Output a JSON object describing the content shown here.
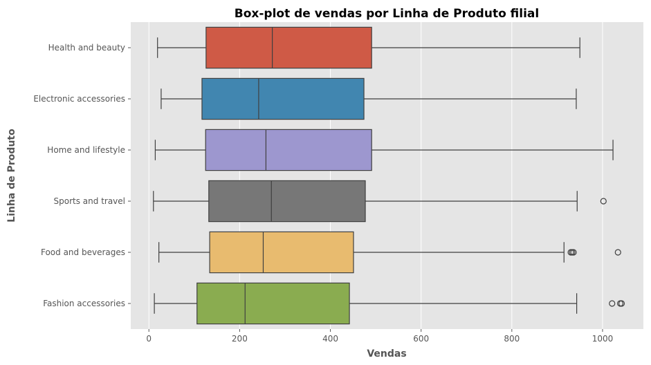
{
  "chart_data": {
    "type": "boxplot",
    "title": "Box-plot de vendas por Linha de Produto filial",
    "xlabel": "Vendas",
    "ylabel": "Linha de Produto",
    "xlim": [
      -40,
      1090
    ],
    "xticks": [
      0,
      200,
      400,
      600,
      800,
      1000
    ],
    "grid": true,
    "background": "#e5e5e5",
    "categories": [
      "Health and beauty",
      "Electronic accessories",
      "Home and lifestyle",
      "Sports and travel",
      "Food and beverages",
      "Fashion accessories"
    ],
    "boxes": [
      {
        "category": "Health and beauty",
        "color": "#cf5a46",
        "whisker_low": 19,
        "q1": 126,
        "median": 272,
        "q3": 491,
        "whisker_high": 950,
        "outliers": []
      },
      {
        "category": "Electronic accessories",
        "color": "#4186b0",
        "whisker_low": 27,
        "q1": 117,
        "median": 242,
        "q3": 474,
        "whisker_high": 942,
        "outliers": []
      },
      {
        "category": "Home and lifestyle",
        "color": "#9d97cf",
        "whisker_low": 14,
        "q1": 125,
        "median": 258,
        "q3": 491,
        "whisker_high": 1023,
        "outliers": []
      },
      {
        "category": "Sports and travel",
        "color": "#777777",
        "whisker_low": 10,
        "q1": 132,
        "median": 270,
        "q3": 477,
        "whisker_high": 944,
        "outliers": [
          1002
        ]
      },
      {
        "category": "Food and beverages",
        "color": "#e8bb6f",
        "whisker_low": 22,
        "q1": 134,
        "median": 252,
        "q3": 451,
        "whisker_high": 915,
        "outliers": [
          930,
          933,
          936,
          1034
        ]
      },
      {
        "category": "Fashion accessories",
        "color": "#8aac50",
        "whisker_low": 12,
        "q1": 106,
        "median": 212,
        "q3": 442,
        "whisker_high": 943,
        "outliers": [
          1021,
          1039,
          1042
        ]
      }
    ]
  }
}
